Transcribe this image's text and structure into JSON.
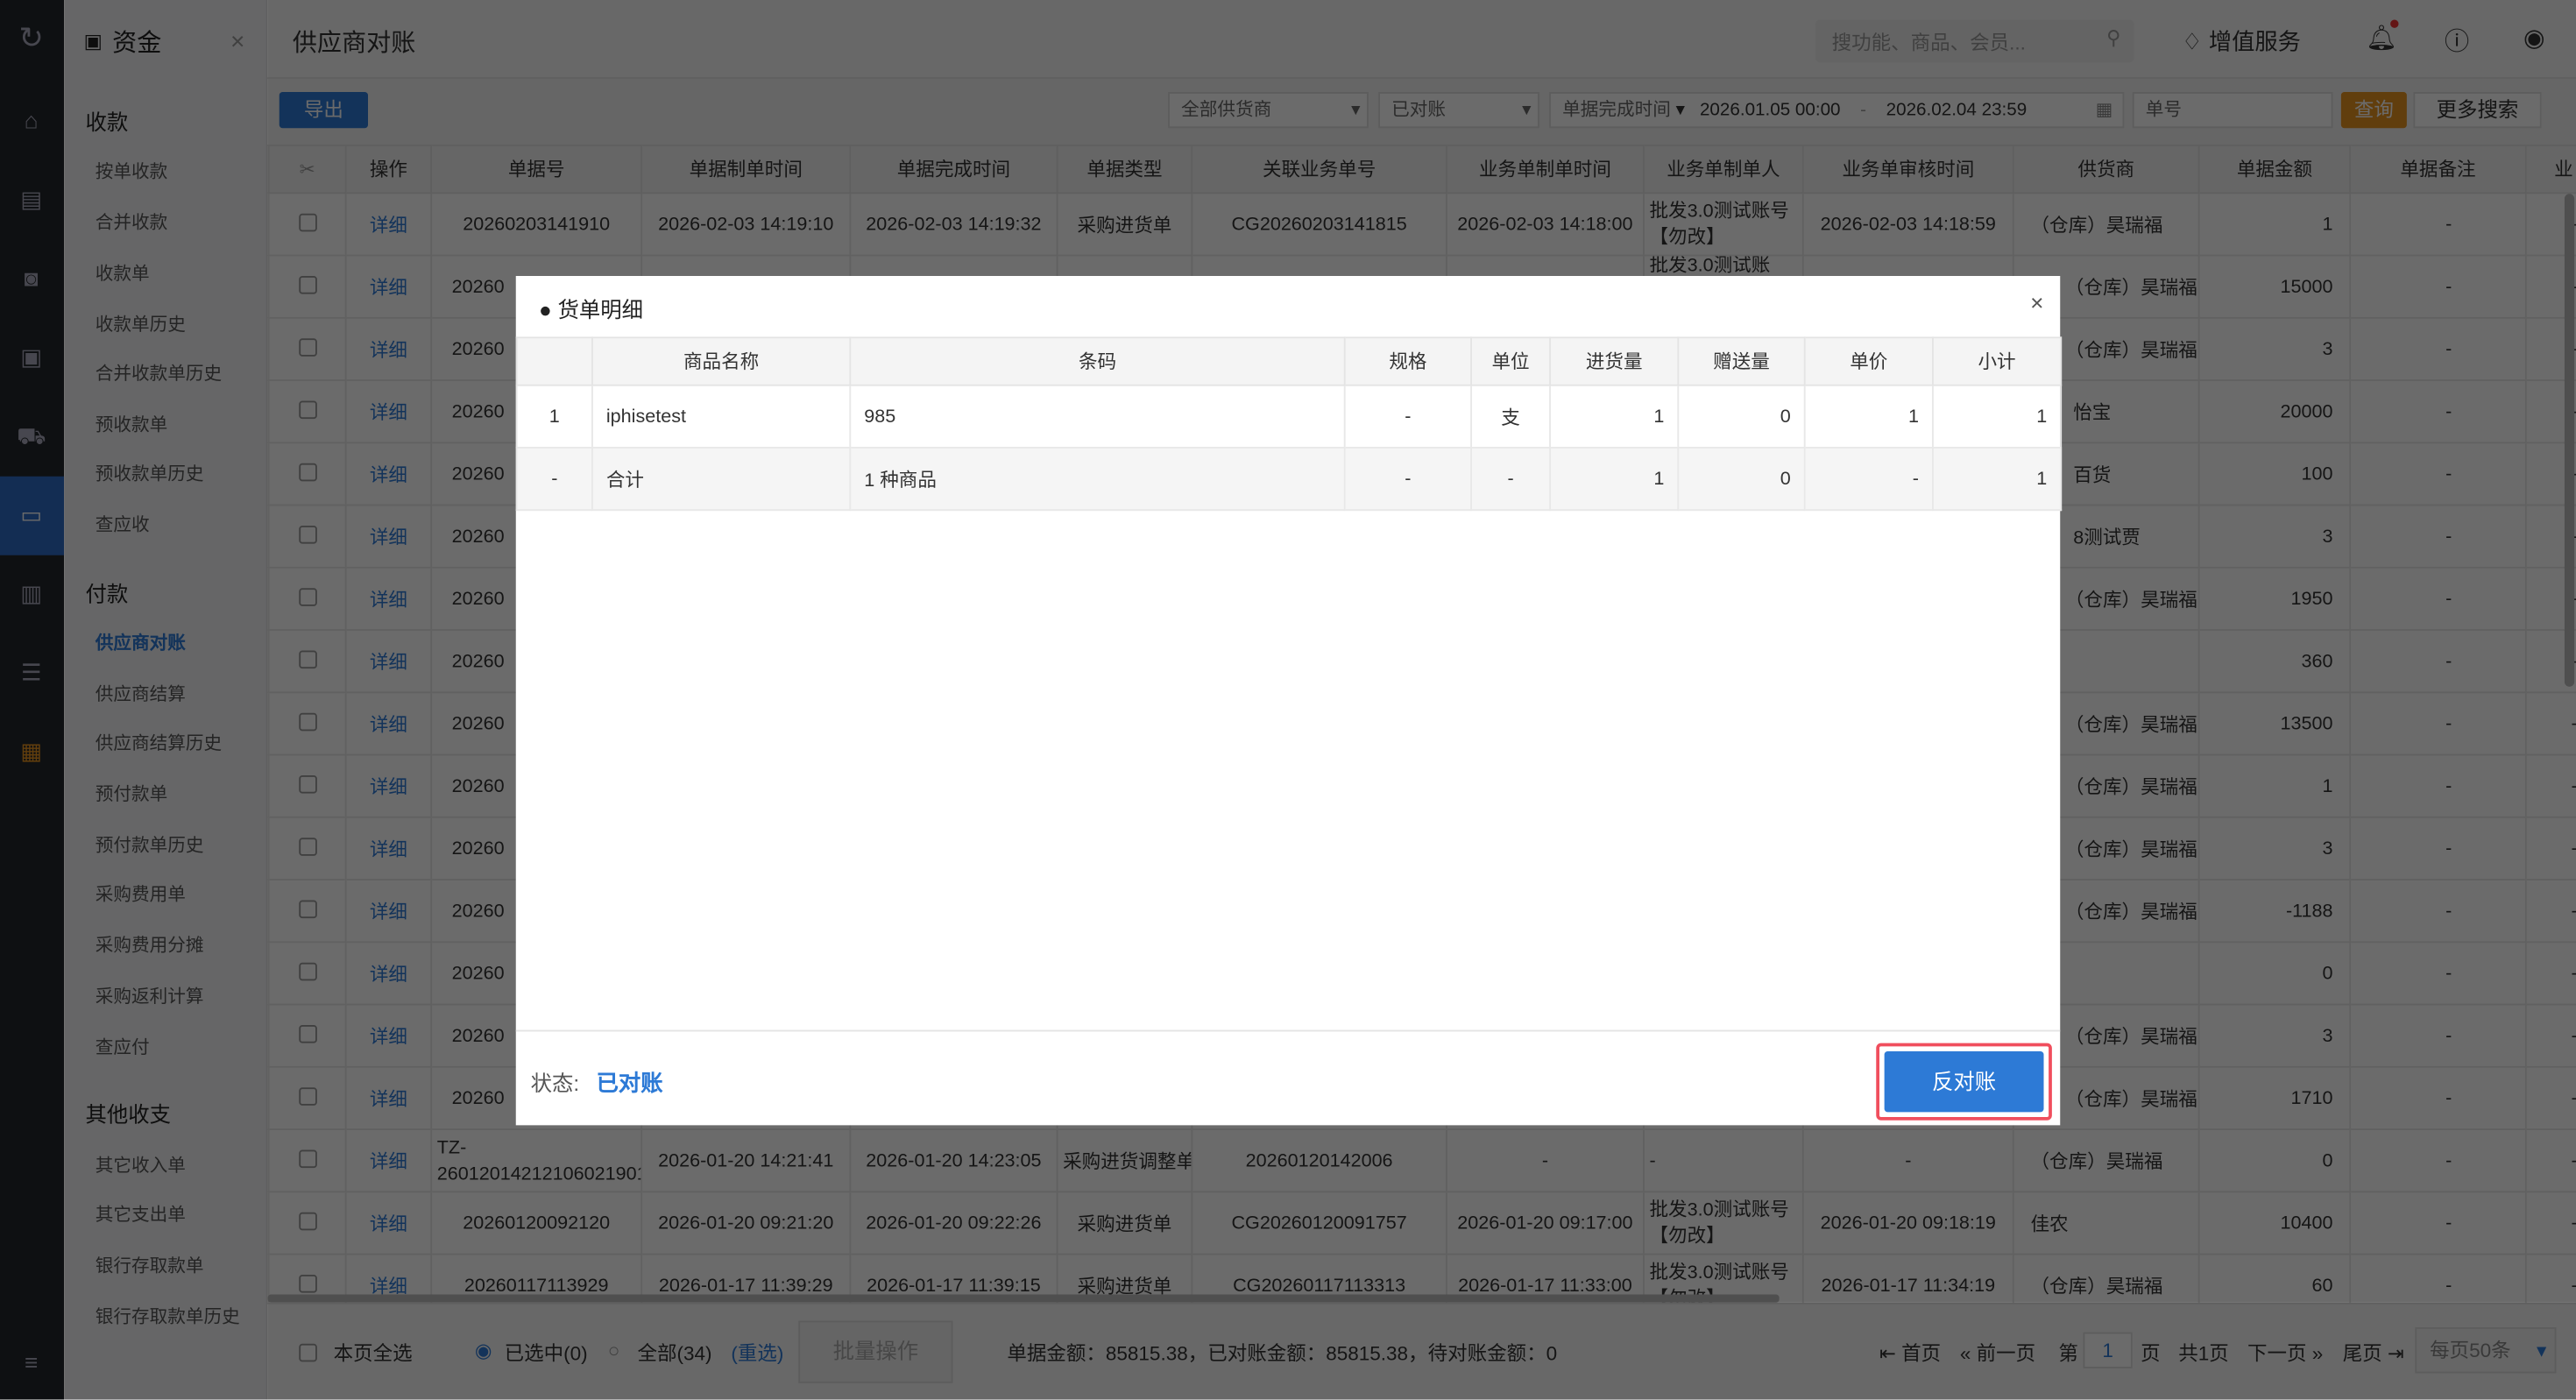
{
  "module": {
    "title": "资金",
    "close": "×"
  },
  "sidebar": {
    "groups": [
      {
        "label": "收款",
        "items": [
          "按单收款",
          "合并收款",
          "收款单",
          "收款单历史",
          "合并收款单历史",
          "预收款单",
          "预收款单历史",
          "查应收"
        ]
      },
      {
        "label": "付款",
        "items": [
          "供应商对账",
          "供应商结算",
          "供应商结算历史",
          "预付款单",
          "预付款单历史",
          "采购费用单",
          "采购费用分摊",
          "采购返利计算",
          "查应付"
        ]
      },
      {
        "label": "其他收支",
        "items": [
          "其它收入单",
          "其它支出单",
          "银行存取款单",
          "银行存取款单历史"
        ]
      }
    ],
    "selected": "供应商对账"
  },
  "header": {
    "page_title": "供应商对账",
    "search_placeholder": "搜功能、商品、会员...",
    "value_service": "增值服务"
  },
  "toolbar": {
    "export": "导出",
    "supplier_select": "全部供货商",
    "status_select": "已对账",
    "time_type_select": "单据完成时间",
    "date_from": "2026.01.05 00:00",
    "date_sep": "-",
    "date_to": "2026.02.04 23:59",
    "doc_no_placeholder": "单号",
    "query": "查询",
    "more_search": "更多搜索"
  },
  "table": {
    "headers": [
      "",
      "操作",
      "单据号",
      "单据制单时间",
      "单据完成时间",
      "单据类型",
      "关联业务单号",
      "业务单制单时间",
      "业务单制单人",
      "业务单审核时间",
      "供货商",
      "单据金额",
      "单据备注",
      "业"
    ],
    "detail_label": "详细",
    "rows": [
      [
        "20260203141910",
        "2026-02-03 14:19:10",
        "2026-02-03 14:19:32",
        "采购进货单",
        "CG20260203141815",
        "2026-02-03 14:18:00",
        "批发3.0测试账号【勿改】",
        "2026-02-03 14:18:59",
        "（仓库）昊瑞福",
        "1",
        "-",
        "-"
      ],
      [
        "20260",
        "",
        "",
        "",
        "",
        "",
        "批发3.0测试账",
        "",
        "（仓库）昊瑞福",
        "15000",
        "-",
        "-"
      ],
      [
        "20260",
        "",
        "",
        "",
        "",
        "",
        "",
        "",
        "（仓库）昊瑞福",
        "3",
        "-",
        "-"
      ],
      [
        "20260",
        "",
        "",
        "",
        "",
        "",
        "",
        "",
        "怡宝",
        "20000",
        "-",
        "-"
      ],
      [
        "20260",
        "",
        "",
        "",
        "",
        "",
        "",
        "",
        "百货",
        "100",
        "-",
        "-"
      ],
      [
        "20260",
        "",
        "",
        "",
        "",
        "",
        "",
        "",
        "8测试贾",
        "3",
        "-",
        "-"
      ],
      [
        "20260",
        "",
        "",
        "",
        "",
        "",
        "",
        "",
        "（仓库）昊瑞福",
        "1950",
        "-",
        "-"
      ],
      [
        "20260",
        "",
        "",
        "",
        "",
        "",
        "",
        "",
        "",
        "360",
        "-",
        "-"
      ],
      [
        "20260",
        "",
        "",
        "",
        "",
        "",
        "",
        "",
        "（仓库）昊瑞福",
        "13500",
        "-",
        "-"
      ],
      [
        "20260",
        "",
        "",
        "",
        "",
        "",
        "",
        "",
        "（仓库）昊瑞福",
        "1",
        "-",
        "-"
      ],
      [
        "20260",
        "",
        "",
        "",
        "",
        "",
        "",
        "",
        "（仓库）昊瑞福",
        "3",
        "-",
        "-"
      ],
      [
        "20260",
        "",
        "",
        "",
        "",
        "",
        "",
        "",
        "（仓库）昊瑞福",
        "-1188",
        "-",
        "-"
      ],
      [
        "20260",
        "",
        "",
        "",
        "",
        "",
        "",
        "",
        "",
        "0",
        "-",
        "-"
      ],
      [
        "20260",
        "",
        "",
        "",
        "",
        "",
        "",
        "",
        "（仓库）昊瑞福",
        "3",
        "-",
        "-"
      ],
      [
        "20260",
        "",
        "",
        "",
        "",
        "",
        "",
        "",
        "（仓库）昊瑞福",
        "1710",
        "-",
        "-"
      ],
      [
        "TZ-26012014212106021901",
        "2026-01-20 14:21:41",
        "2026-01-20 14:23:05",
        "采购进货调整单",
        "20260120142006",
        "-",
        "-",
        "-",
        "（仓库）昊瑞福",
        "0",
        "-",
        "-"
      ],
      [
        "20260120092120",
        "2026-01-20 09:21:20",
        "2026-01-20 09:22:26",
        "采购进货单",
        "CG20260120091757",
        "2026-01-20 09:17:00",
        "批发3.0测试账号【勿改】",
        "2026-01-20 09:18:19",
        "佳农",
        "10400",
        "-",
        "-"
      ],
      [
        "20260117113929",
        "2026-01-17 11:39:29",
        "2026-01-17 11:39:15",
        "采购进货单",
        "CG20260117113313",
        "2026-01-17 11:33:00",
        "批发3.0测试账号【勿改】",
        "2026-01-17 11:34:19",
        "（仓库）昊瑞福",
        "60",
        "-",
        "-"
      ]
    ]
  },
  "footer": {
    "select_page": "本页全选",
    "selected": "已选中(0)",
    "all": "全部(34)",
    "reselect": "(重选)",
    "batch": "批量操作",
    "summary": "单据金额：85815.38，已对账金额：85815.38，待对账金额：0",
    "first": "首页",
    "prev": "前一页",
    "page_prefix": "第",
    "page": "1",
    "page_suffix": "页",
    "total_pages": "共1页",
    "next": "下一页",
    "last": "尾页",
    "per_page": "每页50条"
  },
  "modal": {
    "title": "货单明细",
    "close": "×",
    "headers": [
      "",
      "商品名称",
      "条码",
      "规格",
      "单位",
      "进货量",
      "赠送量",
      "单价",
      "小计"
    ],
    "rows": [
      [
        "1",
        "iphisetest",
        "985",
        "-",
        "支",
        "1",
        "0",
        "1",
        "1"
      ]
    ],
    "total": [
      "-",
      "合计",
      "1 种商品",
      "-",
      "-",
      "1",
      "0",
      "-",
      "1"
    ],
    "status_label": "状态:",
    "status_value": "已对账",
    "reverse_button": "反对账"
  },
  "colors": {
    "accent": "#2d7ad6",
    "query": "#e8931e",
    "highlight": "#f04e5d"
  }
}
